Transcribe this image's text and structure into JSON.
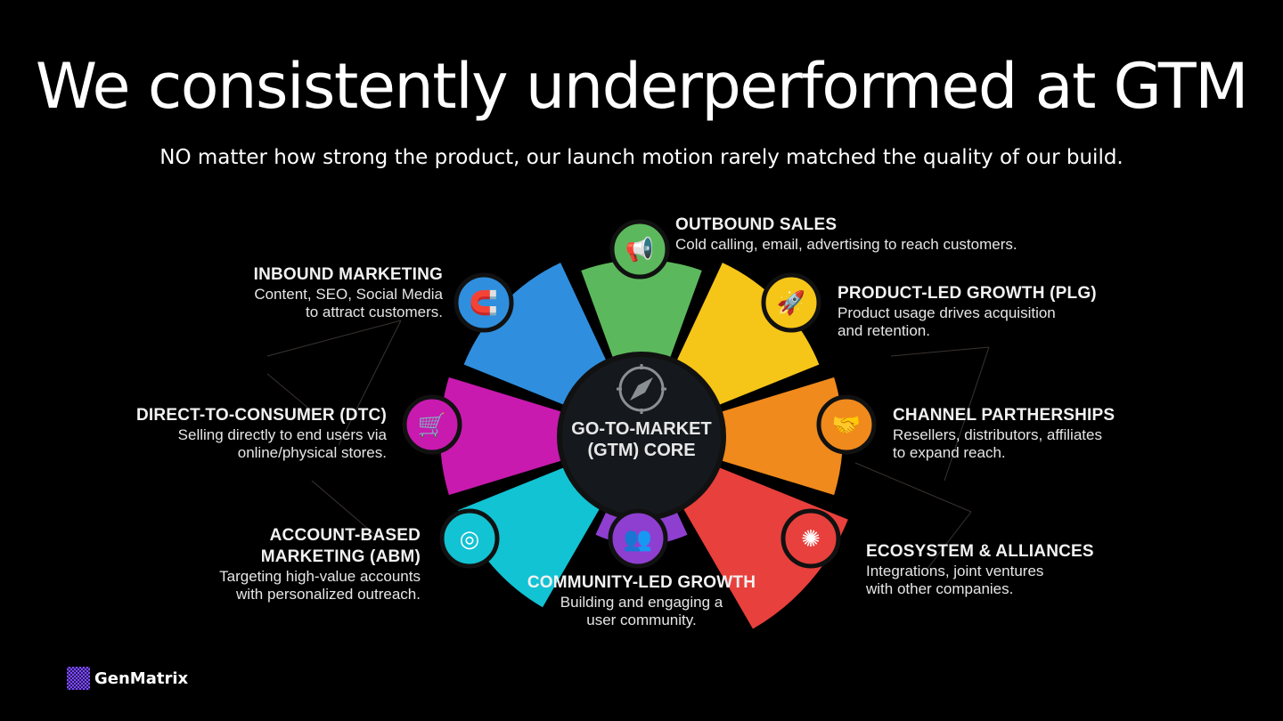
{
  "title": "We consistently underperformed at GTM",
  "subtitle": "NO matter how strong the product, our launch motion rarely matched the quality of our build.",
  "core": {
    "line1": "GO-TO-MARKET",
    "line2": "(GTM) CORE",
    "icon": "compass-icon"
  },
  "segments": [
    {
      "id": "outbound",
      "title": "OUTBOUND SALES",
      "desc1": "Cold calling, email, advertising to reach customers.",
      "desc2": "",
      "color": "#5cb85c",
      "icon": "megaphone-icon"
    },
    {
      "id": "plg",
      "title": "PRODUCT-LED GROWTH (PLG)",
      "desc1": "Product usage drives acquisition",
      "desc2": "and retention.",
      "color": "#f5c518",
      "icon": "rocket-icon"
    },
    {
      "id": "channel",
      "title": "CHANNEL PARTHERSHIPS",
      "desc1": "Resellers, distributors, affiliates",
      "desc2": "to expand reach.",
      "color": "#f08a1c",
      "icon": "handshake-icon"
    },
    {
      "id": "ecosystem",
      "title": "ECOSYSTEM & ALLIANCES",
      "desc1": "Integrations, joint ventures",
      "desc2": "with other companies.",
      "color": "#e8403c",
      "icon": "network-icon"
    },
    {
      "id": "community",
      "title": "COMMUNITY-LED GROWTH",
      "desc1": "Building and engaging a",
      "desc2": "user community.",
      "color": "#8e3fd0",
      "icon": "people-icon"
    },
    {
      "id": "abm",
      "title": "ACCOUNT-BASED",
      "title2": "MARKETING (ABM)",
      "desc1": "Targeting high-value accounts",
      "desc2": "with personalized outreach.",
      "color": "#12c3d3",
      "icon": "target-icon"
    },
    {
      "id": "dtc",
      "title": "DIRECT-TO-CONSUMER (DTC)",
      "desc1": "Selling directly to end users via",
      "desc2": "online/physical stores.",
      "color": "#c81aae",
      "icon": "cart-icon"
    },
    {
      "id": "inbound",
      "title": "INBOUND MARKETING",
      "desc1": "Content, SEO, Social Media",
      "desc2": "to attract customers.",
      "color": "#2f8fde",
      "icon": "magnet-icon"
    }
  ],
  "logo": {
    "text": "GenMatrix"
  }
}
